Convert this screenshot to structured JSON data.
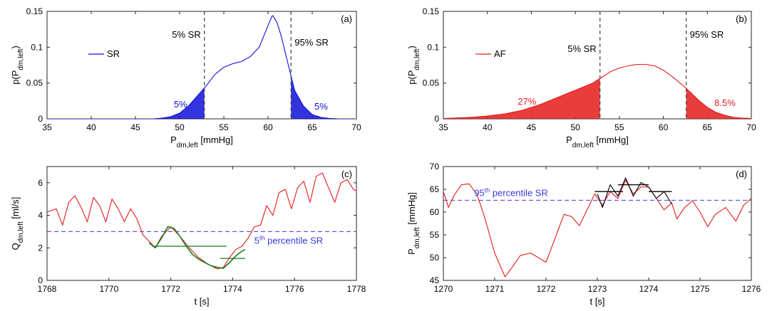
{
  "colors": {
    "blue": "#1010d8",
    "red": "#e41b1b",
    "green": "#1a7a1a",
    "dashed_ref": "#404040",
    "threshold": "#3a3ad8"
  },
  "chart_data": [
    {
      "id": "a",
      "type": "area",
      "panel_label": "(a)",
      "xlabel": "P",
      "xlabel_sub": "dm,left",
      "xlabel_unit": " [mmHg]",
      "ylabel": "p(P",
      "ylabel_sub": "dm,left",
      "ylabel_close": ")",
      "xlim": [
        35,
        70
      ],
      "ylim": [
        0,
        0.15
      ],
      "xticks": [
        "35",
        "40",
        "45",
        "50",
        "55",
        "60",
        "65",
        "70"
      ],
      "yticks": [
        "0",
        "0.05",
        "0.1",
        "0.15"
      ],
      "legend": "SR",
      "legend_position": "left",
      "series": [
        {
          "name": "SR",
          "color": "blue",
          "x": [
            47,
            48,
            49,
            50,
            51,
            52,
            53,
            54,
            55,
            56,
            57,
            58,
            59,
            60,
            60.5,
            61,
            61.5,
            62,
            62.5,
            63,
            64,
            65,
            66,
            67,
            68
          ],
          "y": [
            0,
            0.001,
            0.003,
            0.008,
            0.018,
            0.032,
            0.046,
            0.062,
            0.072,
            0.077,
            0.08,
            0.087,
            0.1,
            0.13,
            0.145,
            0.135,
            0.115,
            0.09,
            0.065,
            0.04,
            0.018,
            0.006,
            0.002,
            0.0005,
            0
          ]
        }
      ],
      "shaded": [
        [
          47,
          52.8
        ],
        [
          62.6,
          68
        ]
      ],
      "vlines": [
        52.8,
        62.6
      ],
      "vline_labels": [
        "5% SR",
        "95% SR"
      ],
      "annotations": [
        "5%",
        "5%"
      ]
    },
    {
      "id": "b",
      "type": "area",
      "panel_label": "(b)",
      "xlabel": "P",
      "xlabel_sub": "dm,left",
      "xlabel_unit": " [mmHg]",
      "ylabel": "p(P",
      "ylabel_sub": "dm,left",
      "ylabel_close": ")",
      "xlim": [
        35,
        70
      ],
      "ylim": [
        0,
        0.15
      ],
      "xticks": [
        "35",
        "40",
        "45",
        "50",
        "55",
        "60",
        "65",
        "70"
      ],
      "yticks": [
        "0",
        "0.05",
        "0.1",
        "0.15"
      ],
      "legend": "AF",
      "legend_position": "left",
      "series": [
        {
          "name": "AF",
          "color": "red",
          "x": [
            35,
            38,
            40,
            42,
            44,
            46,
            48,
            50,
            51,
            52,
            53,
            54,
            55,
            56,
            57,
            58,
            59,
            60,
            61,
            62,
            63,
            64,
            65,
            66,
            67,
            68,
            69,
            70
          ],
          "y": [
            0.0005,
            0.002,
            0.004,
            0.007,
            0.012,
            0.02,
            0.03,
            0.04,
            0.045,
            0.05,
            0.058,
            0.066,
            0.071,
            0.074,
            0.076,
            0.076,
            0.074,
            0.068,
            0.059,
            0.049,
            0.038,
            0.026,
            0.016,
            0.009,
            0.005,
            0.002,
            0.001,
            0.0005
          ]
        }
      ],
      "shaded": [
        [
          35,
          52.8
        ],
        [
          62.6,
          70
        ]
      ],
      "vlines": [
        52.8,
        62.6
      ],
      "vline_labels": [
        "5% SR",
        "95% SR"
      ],
      "annotations": [
        "27%",
        "8.5%"
      ]
    },
    {
      "id": "c",
      "type": "line",
      "panel_label": "(c)",
      "xlabel": "t [s]",
      "ylabel": "Q",
      "ylabel_sub": "dm,left",
      "ylabel_unit": " [ml/s]",
      "xlim": [
        1768,
        1778
      ],
      "ylim": [
        0,
        7
      ],
      "xticks": [
        "1768",
        "1770",
        "1772",
        "1774",
        "1776",
        "1778"
      ],
      "yticks": [
        "0",
        "2",
        "4",
        "6"
      ],
      "threshold": 3.0,
      "threshold_label": "5",
      "threshold_label_sup": "th",
      "threshold_label_rest": " percentile SR",
      "series": [
        {
          "name": "",
          "color": "red",
          "x": [
            1768,
            1768.3,
            1768.5,
            1768.7,
            1768.9,
            1769.1,
            1769.3,
            1769.5,
            1769.7,
            1769.9,
            1770.1,
            1770.3,
            1770.5,
            1770.7,
            1770.9,
            1771.1,
            1771.3,
            1771.5,
            1771.7,
            1772.0,
            1772.3,
            1772.6,
            1772.9,
            1773.2,
            1773.5,
            1773.7,
            1773.9,
            1774.1,
            1774.3,
            1774.5,
            1774.7,
            1774.9,
            1775.1,
            1775.3,
            1775.5,
            1775.7,
            1775.9,
            1776.1,
            1776.3,
            1776.5,
            1776.7,
            1776.9,
            1777.1,
            1777.3,
            1777.5,
            1777.7,
            1777.9,
            1778
          ],
          "y": [
            4.2,
            4.4,
            3.4,
            4.8,
            5.2,
            4.5,
            3.6,
            5.1,
            4.6,
            3.6,
            5.0,
            4.4,
            3.6,
            4.4,
            3.8,
            2.8,
            2.4,
            2.0,
            2.7,
            3.3,
            2.7,
            2.0,
            1.4,
            1.0,
            0.7,
            0.8,
            1.4,
            1.9,
            2.1,
            2.6,
            3.3,
            3.4,
            4.6,
            4.0,
            5.4,
            5.6,
            4.4,
            5.7,
            6.1,
            4.8,
            6.4,
            6.6,
            5.7,
            4.8,
            6.0,
            6.2,
            5.6,
            5.5
          ]
        },
        {
          "name": "",
          "color": "green",
          "x": [
            1771.3,
            1771.5,
            1771.7,
            1771.9,
            1772.1,
            1772.3,
            1772.5,
            1772.7,
            1772.9,
            1773.1,
            1773.3,
            1773.5,
            1773.7,
            1773.9,
            1774.1,
            1774.3,
            1774.4
          ],
          "y": [
            2.3,
            2.0,
            2.6,
            3.3,
            3.2,
            2.7,
            2.1,
            1.6,
            1.3,
            1.1,
            0.9,
            0.8,
            0.75,
            1.1,
            1.5,
            1.8,
            1.9
          ]
        }
      ],
      "segments": [
        {
          "x": [
            1771.4,
            1773.8
          ],
          "y": 2.1
        },
        {
          "x": [
            1773.6,
            1774.4
          ],
          "y": 1.35
        }
      ]
    },
    {
      "id": "d",
      "type": "line",
      "panel_label": "(d)",
      "xlabel": "t [s]",
      "ylabel": "P",
      "ylabel_sub": "dm,left",
      "ylabel_unit": " [mmHg]",
      "xlim": [
        1270,
        1276
      ],
      "ylim": [
        45,
        70
      ],
      "xticks": [
        "1270",
        "1271",
        "1272",
        "1273",
        "1274",
        "1275",
        "1276"
      ],
      "yticks": [
        "45",
        "50",
        "55",
        "60",
        "65",
        "70"
      ],
      "threshold": 62.6,
      "threshold_label": "95",
      "threshold_label_sup": "th",
      "threshold_label_rest": " percentile SR",
      "series": [
        {
          "name": "",
          "color": "red",
          "x": [
            1270,
            1270.1,
            1270.2,
            1270.35,
            1270.5,
            1270.65,
            1270.8,
            1271.0,
            1271.2,
            1271.35,
            1271.5,
            1271.7,
            1271.85,
            1272.0,
            1272.2,
            1272.35,
            1272.5,
            1272.65,
            1272.8,
            1272.95,
            1273.1,
            1273.25,
            1273.4,
            1273.55,
            1273.7,
            1273.85,
            1274.0,
            1274.15,
            1274.3,
            1274.45,
            1274.55,
            1274.7,
            1274.85,
            1275.0,
            1275.15,
            1275.3,
            1275.5,
            1275.7,
            1275.85,
            1276
          ],
          "y": [
            64.5,
            61.0,
            63.5,
            66.0,
            66.2,
            64.0,
            59.0,
            51.0,
            45.8,
            48.0,
            50.5,
            51.0,
            50.0,
            49.0,
            55.0,
            59.5,
            59.0,
            57.0,
            60.5,
            64.0,
            61.5,
            64.5,
            63.0,
            67.0,
            64.0,
            65.5,
            65.5,
            63.0,
            60.5,
            62.0,
            58.5,
            61.0,
            62.5,
            60.0,
            56.8,
            59.5,
            61.0,
            58.0,
            61.5,
            63.0
          ]
        },
        {
          "name": "",
          "color": "black",
          "x": [
            1273.0,
            1273.1,
            1273.25,
            1273.4,
            1273.55,
            1273.7,
            1273.85,
            1274.0,
            1274.15,
            1274.3,
            1274.45
          ],
          "y": [
            64.0,
            61.0,
            66.0,
            63.5,
            67.5,
            63.5,
            66.5,
            65.5,
            63.0,
            64.5,
            61.8
          ]
        }
      ],
      "segments": [
        {
          "x": [
            1272.95,
            1273.5
          ],
          "y": 64.5
        },
        {
          "x": [
            1273.4,
            1274.0
          ],
          "y": 66.0
        },
        {
          "x": [
            1274.0,
            1274.45
          ],
          "y": 64.5
        }
      ]
    }
  ]
}
